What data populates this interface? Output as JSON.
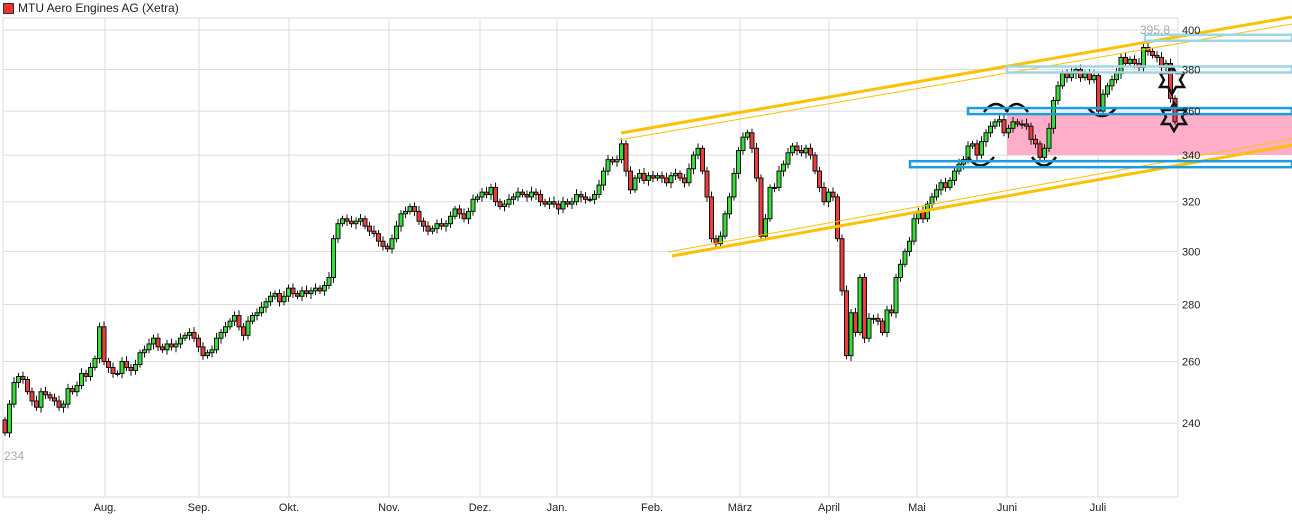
{
  "header": {
    "title": "MTU Aero Engines AG (Xetra)"
  },
  "chart_data": {
    "type": "candlestick",
    "title": "MTU Aero Engines AG (Xetra)",
    "y_scale": "log",
    "ylim": [
      222,
      404
    ],
    "y_ticks": [
      "400",
      "380",
      "360",
      "340",
      "320",
      "300",
      "280",
      "260",
      "240"
    ],
    "x_ticks": [
      "Aug.",
      "Sep.",
      "Okt.",
      "Nov.",
      "Dez.",
      "Jan.",
      "Feb.",
      "März",
      "April",
      "Mai",
      "Juni",
      "Juli"
    ],
    "max_label": "395,8",
    "min_label": "234",
    "grid": true,
    "colors": {
      "up": "#33e033",
      "down": "#ee3b3b",
      "channel": "#ffc000",
      "level_light": "#9fd6e6",
      "level": "#1a9ee0",
      "zone": "#ffaec9"
    },
    "first_open": 241,
    "closes": [
      237,
      246,
      253,
      255,
      254,
      250,
      247,
      245,
      250,
      249,
      248,
      247,
      245,
      246,
      251,
      250,
      252,
      256,
      255,
      258,
      261,
      272,
      260,
      258,
      256,
      256,
      260,
      258,
      257,
      259,
      263,
      264,
      266,
      268,
      265,
      264,
      266,
      265,
      266,
      268,
      269,
      270,
      268,
      265,
      262,
      263,
      264,
      268,
      270,
      272,
      274,
      276,
      272,
      269,
      274,
      276,
      277,
      279,
      281,
      283,
      284,
      281,
      283,
      286,
      284,
      283,
      285,
      284,
      285,
      286,
      285,
      287,
      290,
      305,
      311,
      313,
      312,
      311,
      312,
      313,
      310,
      308,
      307,
      304,
      302,
      301,
      305,
      310,
      315,
      316,
      318,
      316,
      312,
      310,
      308,
      309,
      311,
      310,
      311,
      314,
      317,
      315,
      313,
      316,
      321,
      322,
      324,
      323,
      326,
      320,
      318,
      319,
      321,
      322,
      324,
      323,
      322,
      324,
      323,
      320,
      319,
      320,
      319,
      317,
      320,
      319,
      320,
      323,
      322,
      321,
      321,
      323,
      327,
      333,
      338,
      337,
      338,
      345,
      333,
      325,
      330,
      332,
      329,
      331,
      330,
      331,
      330,
      328,
      331,
      332,
      330,
      328,
      334,
      340,
      343,
      333,
      322,
      305,
      303,
      306,
      315,
      322,
      332,
      342,
      348,
      350,
      343,
      330,
      306,
      313,
      326,
      326,
      333,
      336,
      341,
      344,
      342,
      341,
      343,
      340,
      333,
      326,
      320,
      324,
      322,
      305,
      285,
      262,
      277,
      270,
      290,
      268,
      275,
      275,
      274,
      270,
      278,
      277,
      290,
      295,
      300,
      304,
      313,
      316,
      313,
      319,
      322,
      325,
      328,
      326,
      329,
      333,
      336,
      338,
      344,
      345,
      340,
      346,
      350,
      353,
      355,
      356,
      350,
      352,
      355,
      354,
      354,
      353,
      347,
      345,
      339,
      343,
      352,
      365,
      372,
      378,
      376,
      378,
      380,
      376,
      378,
      375,
      377,
      360,
      368,
      372,
      375,
      378,
      386,
      383,
      385,
      383,
      381,
      391,
      389,
      387,
      386,
      381,
      383,
      366,
      355
    ],
    "levels": [
      396,
      380,
      360,
      336
    ],
    "zone": [
      340,
      359
    ]
  }
}
